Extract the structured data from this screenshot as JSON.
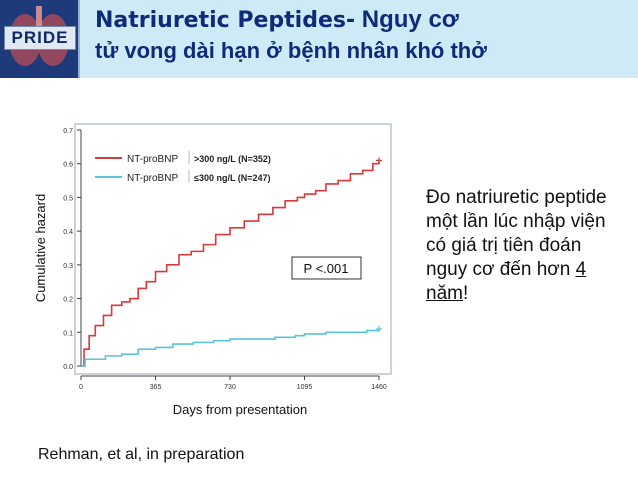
{
  "header": {
    "logo_text": "PRIDE",
    "title_strong": "Natriuretic Peptides-",
    "title_rest": " Nguy cơ",
    "title_line2": "tử vong dài hạn ở bệnh nhân khó thở"
  },
  "side_note": {
    "text_before": "Đo natriuretic peptide một lần lúc nhập viện có giá trị tiên đoán nguy cơ đến hơn ",
    "emphasis": "4 năm",
    "text_after": "!"
  },
  "citation": "Rehman, et al, in preparation",
  "colors": {
    "high": "#d63a3a",
    "low": "#59c4dc",
    "title": "#0f2a7a",
    "header_bg": "#cdeaf6"
  },
  "chart_data": {
    "type": "line",
    "xlabel": "Days from presentation",
    "ylabel": "Cumulative hazard",
    "xlim": [
      0,
      1460
    ],
    "ylim": [
      0,
      0.7
    ],
    "x_ticks": [
      "0",
      "365",
      "730",
      "1095",
      "1460"
    ],
    "y_ticks": [
      "0.0",
      "0.1",
      "0.2",
      "0.3",
      "0.4",
      "0.5",
      "0.6",
      "0.7"
    ],
    "annotation": "P <.001",
    "legend_position": "top-left",
    "series": [
      {
        "name": "NT-proBNP >300 ng/L (N=352)",
        "legend_label": "NT-proBNP",
        "legend_detail": ">300 ng/L (N=352)",
        "color": "#d63a3a",
        "x": [
          0,
          15,
          40,
          70,
          110,
          150,
          200,
          240,
          280,
          320,
          365,
          420,
          480,
          540,
          600,
          660,
          730,
          800,
          870,
          940,
          1000,
          1060,
          1095,
          1150,
          1200,
          1260,
          1320,
          1380,
          1430,
          1460
        ],
        "y": [
          0.0,
          0.05,
          0.09,
          0.12,
          0.15,
          0.18,
          0.19,
          0.2,
          0.23,
          0.25,
          0.28,
          0.3,
          0.33,
          0.34,
          0.36,
          0.39,
          0.41,
          0.43,
          0.45,
          0.47,
          0.49,
          0.5,
          0.51,
          0.52,
          0.54,
          0.55,
          0.57,
          0.58,
          0.6,
          0.61
        ]
      },
      {
        "name": "NT-proBNP ≤300 ng/L (N=247)",
        "legend_label": "NT-proBNP",
        "legend_detail": "≤300 ng/L (N=247)",
        "color": "#59c4dc",
        "x": [
          0,
          20,
          60,
          120,
          200,
          280,
          365,
          450,
          550,
          650,
          730,
          850,
          950,
          1050,
          1095,
          1200,
          1300,
          1400,
          1460
        ],
        "y": [
          0.0,
          0.02,
          0.02,
          0.03,
          0.035,
          0.05,
          0.055,
          0.065,
          0.07,
          0.075,
          0.08,
          0.08,
          0.085,
          0.09,
          0.095,
          0.1,
          0.1,
          0.105,
          0.11
        ]
      }
    ]
  }
}
